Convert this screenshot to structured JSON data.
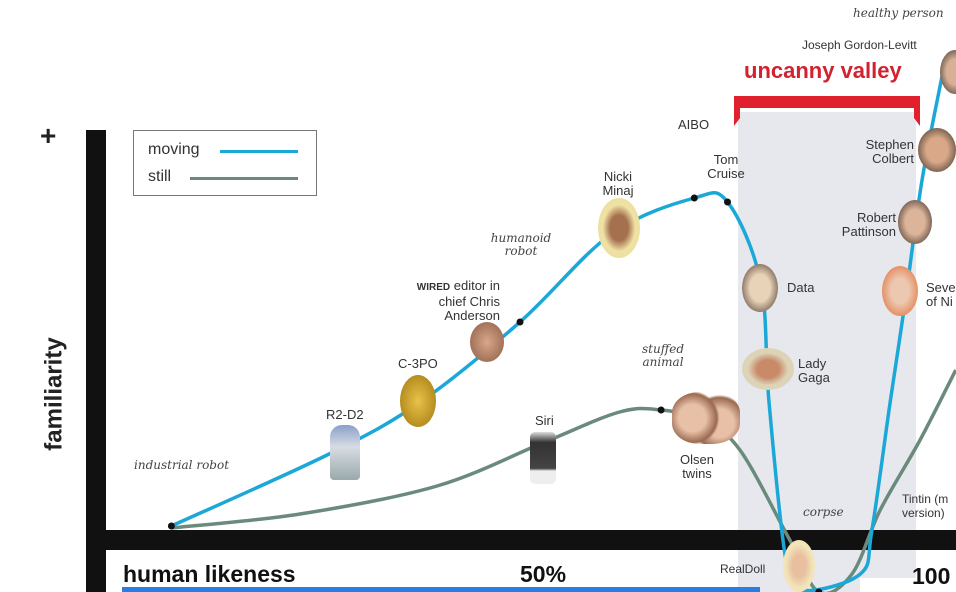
{
  "chart_data": {
    "type": "line",
    "xlabel": "human likeness",
    "ylabel": "familiarity",
    "y_positive_marker": "+",
    "x_ticks": [
      "50%",
      "100"
    ],
    "xlim": [
      0,
      100
    ],
    "ylim": [
      -15,
      100
    ],
    "grid": false,
    "legend_placement": "top-left",
    "highlight_region": {
      "label": "uncanny valley",
      "x_range": [
        76,
        98
      ]
    },
    "series": [
      {
        "name": "moving",
        "color": "#1ba8d8",
        "x": [
          8,
          27,
          38,
          50,
          61,
          71,
          75,
          79,
          80,
          82,
          84,
          91,
          92.4,
          94.6,
          96.4,
          98.4,
          101
        ],
        "y": [
          1,
          19,
          32,
          52,
          74,
          83,
          82,
          62,
          32,
          -7,
          -15,
          -11,
          0,
          32,
          57,
          87,
          115
        ]
      },
      {
        "name": "still",
        "color": "#6a8a7c",
        "x": [
          8,
          23.5,
          40,
          53,
          62,
          67,
          72,
          76.5,
          82.5,
          86,
          90,
          93.4,
          98.2,
          102.5
        ],
        "y": [
          0.5,
          4,
          11,
          22,
          29.5,
          30,
          27.5,
          20,
          -2.5,
          -15.5,
          -11,
          5,
          22.5,
          40
        ]
      }
    ]
  },
  "legend": {
    "moving": "moving",
    "still": "still"
  },
  "annotations": {
    "industrial_robot": "industrial robot",
    "r2d2": "R2-D2",
    "c3po": "C-3PO",
    "wired_brand": "WIRED",
    "wired_rest": " editor in chief Chris Anderson",
    "humanoid_robot": "humanoid robot",
    "nicki": "Nicki Minaj",
    "aibo": "AIBO",
    "tom": "Tom Cruise",
    "data": "Data",
    "gaga": "Lady Gaga",
    "siri": "Siri",
    "stuffed": "stuffed animal",
    "olsen": "Olsen twins",
    "realdoll": "RealDoll",
    "corpse": "corpse",
    "tintin": "Tintin (m version)",
    "healthy": "healthy person",
    "jgl": "Joseph Gordon-Levitt",
    "colbert": "Stephen Colbert",
    "pattinson": "Robert Pattinson",
    "seven": "Seve of Ni"
  },
  "colors": {
    "moving": "#1ba8d8",
    "still": "#6a8a7c",
    "valley": "#d2222f",
    "band": "#e6e8ee"
  }
}
